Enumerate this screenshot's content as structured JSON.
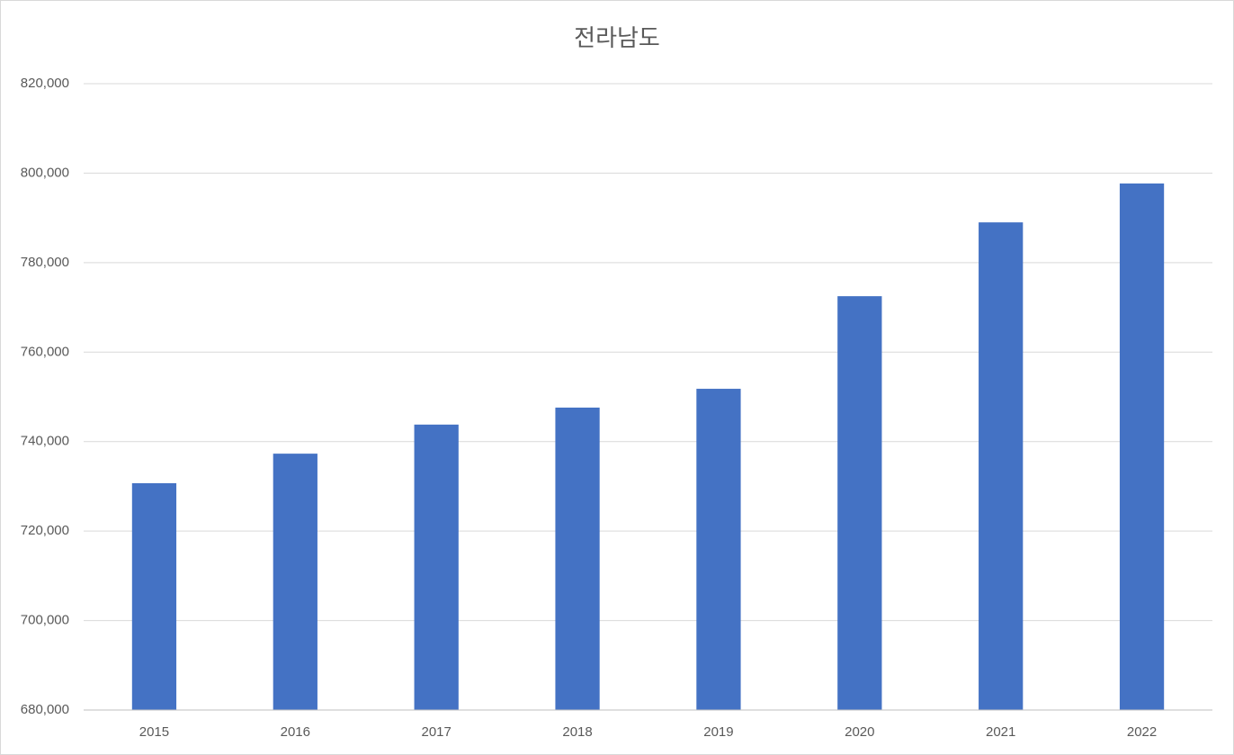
{
  "chart_data": {
    "type": "bar",
    "title": "전라남도",
    "categories": [
      "2015",
      "2016",
      "2017",
      "2018",
      "2019",
      "2020",
      "2021",
      "2022"
    ],
    "values": [
      730700,
      737300,
      743800,
      747600,
      751800,
      772500,
      789000,
      797700
    ],
    "color": "#4472c4",
    "ylim": [
      680000,
      820000
    ],
    "yticks": [
      {
        "value": 680000,
        "label": "680,000"
      },
      {
        "value": 700000,
        "label": "700,000"
      },
      {
        "value": 720000,
        "label": "720,000"
      },
      {
        "value": 740000,
        "label": "740,000"
      },
      {
        "value": 760000,
        "label": "760,000"
      },
      {
        "value": 780000,
        "label": "780,000"
      },
      {
        "value": 800000,
        "label": "800,000"
      },
      {
        "value": 820000,
        "label": "820,000"
      }
    ],
    "grid": true
  }
}
